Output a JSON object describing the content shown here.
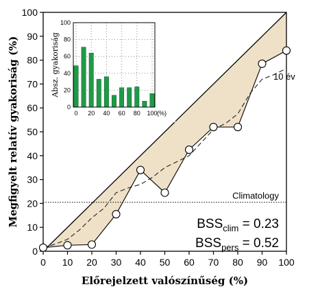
{
  "chart_data": [
    {
      "type": "line",
      "xlabel": "Előrejelzett valószínűség (%)",
      "ylabel": "Megfigyelt relatív gyakoriság (%)",
      "xlim": [
        0,
        100
      ],
      "ylim": [
        0,
        100
      ],
      "xticks": [
        "0",
        "10",
        "20",
        "30",
        "40",
        "50",
        "60",
        "70",
        "80",
        "90",
        "100"
      ],
      "yticks": [
        "0",
        "10",
        "20",
        "30",
        "40",
        "50",
        "60",
        "70",
        "80",
        "90",
        "100"
      ],
      "grid": false,
      "series": [
        {
          "style": "solid-with-circles",
          "x": [
            0,
            10,
            20,
            30,
            40,
            50,
            60,
            70,
            80,
            90,
            100
          ],
          "y": [
            1.5,
            2.5,
            2.8,
            15.5,
            34,
            24.5,
            42.5,
            52,
            52,
            78.5,
            84
          ]
        },
        {
          "name": "10 év",
          "style": "dashed",
          "x": [
            0,
            5,
            10,
            15,
            20,
            25,
            30,
            35,
            40,
            45,
            50,
            55,
            60,
            65,
            70,
            75,
            80,
            85,
            90,
            95,
            100
          ],
          "y": [
            1.5,
            3,
            5,
            9,
            14,
            18,
            24.5,
            26.5,
            28,
            31,
            35,
            37.5,
            40,
            45.5,
            51,
            53.5,
            57.5,
            66,
            72,
            74,
            76.5
          ]
        }
      ],
      "reference_lines": [
        {
          "kind": "diagonal",
          "from": [
            0,
            0
          ],
          "to": [
            100,
            100
          ]
        },
        {
          "kind": "horizontal",
          "style": "dotted",
          "y": 20.5,
          "label": "Climatology"
        }
      ],
      "shaded_region": "between diagonal and observed curve",
      "colors": {
        "shade": "#efe1c8",
        "bars": "#1f9a48",
        "line": "#111111"
      },
      "annotations": [
        {
          "label": "BSS",
          "subscript": "clim",
          "value": "= 0.23"
        },
        {
          "label": "BSS",
          "subscript": "pers",
          "value": "= 0.52"
        }
      ]
    },
    {
      "type": "bar",
      "ylabel": "Absz. gyakoriság",
      "ylim": [
        0,
        100
      ],
      "yticks": [
        "0",
        "20",
        "40",
        "60",
        "80",
        "100"
      ],
      "xticks": [
        "0",
        "20",
        "40",
        "60",
        "80",
        "100"
      ],
      "xunit": "(%)",
      "grid": true,
      "categories": [
        0,
        10,
        20,
        30,
        40,
        50,
        60,
        70,
        80,
        90,
        100
      ],
      "values": [
        49,
        71,
        64,
        33,
        36,
        14,
        23,
        23,
        24,
        7,
        16
      ]
    }
  ]
}
